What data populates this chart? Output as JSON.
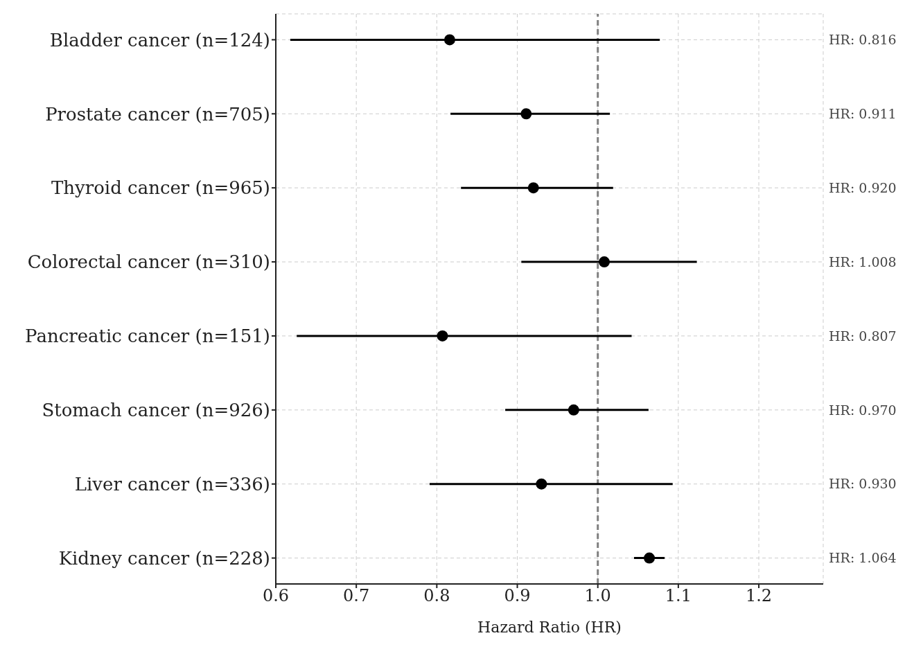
{
  "chart_data": {
    "type": "scatter",
    "orientation": "horizontal",
    "xlabel": "Hazard Ratio (HR)",
    "categories": [
      "Bladder cancer (n=124)",
      "Prostate cancer (n=705)",
      "Thyroid cancer (n=965)",
      "Colorectal cancer (n=310)",
      "Pancreatic cancer (n=151)",
      "Stomach cancer (n=926)",
      "Liver cancer (n=336)",
      "Kidney cancer (n=228)"
    ],
    "series": [
      {
        "color": "#000000",
        "values": [
          0.816,
          0.911,
          0.92,
          1.008,
          0.807,
          0.97,
          0.93,
          1.064
        ],
        "errors": [
          [
            0.618,
            1.077
          ],
          [
            0.817,
            1.015
          ],
          [
            0.83,
            1.019
          ],
          [
            0.905,
            1.123
          ],
          [
            0.626,
            1.042
          ],
          [
            0.885,
            1.063
          ],
          [
            0.791,
            1.093
          ],
          [
            1.045,
            1.083
          ]
        ],
        "value_labels": [
          "HR: 0.816",
          "HR: 0.911",
          "HR: 0.920",
          "HR: 1.008",
          "HR: 0.807",
          "HR: 0.970",
          "HR: 0.930",
          "HR: 1.064"
        ]
      }
    ],
    "xlim": [
      0.6,
      1.28
    ],
    "xticks": [
      0.6,
      0.7,
      0.8,
      0.9,
      {
        "value": 1.0,
        "label": "1.0"
      },
      1.1,
      1.2
    ],
    "ref_lines": [
      {
        "axis": "x",
        "value": 1.0,
        "color": "#808080",
        "line_style": "dashed"
      }
    ],
    "grid": true,
    "marker": "circle",
    "legend": false
  }
}
